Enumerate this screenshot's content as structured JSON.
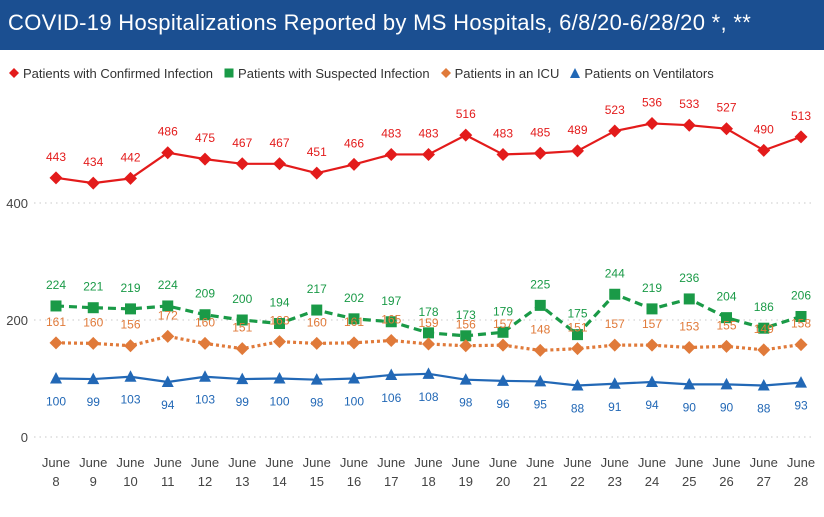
{
  "title": "COVID-19 Hospitalizations Reported by MS Hospitals, 6/8/20-6/28/20 *, **",
  "colors": {
    "title_bg": "#1b4f91",
    "confirmed": "#e31b1b",
    "suspected": "#1a9a47",
    "icu": "#e07a3a",
    "ventilators": "#2268b6",
    "grid": "#c8c8c8",
    "axis_text": "#444444"
  },
  "legend": [
    {
      "label": "Patients with Confirmed Infection",
      "marker": "diamond",
      "color": "#e31b1b"
    },
    {
      "label": "Patients with Suspected Infection",
      "marker": "square",
      "color": "#1a9a47"
    },
    {
      "label": "Patients in an ICU",
      "marker": "diamond",
      "color": "#e07a3a"
    },
    {
      "label": "Patients on Ventilators",
      "marker": "triangle",
      "color": "#2268b6"
    }
  ],
  "chart_data": {
    "type": "line",
    "title": "COVID-19 Hospitalizations Reported by MS Hospitals, 6/8/20-6/28/20 *, **",
    "categories": [
      {
        "month": "June",
        "day": "8"
      },
      {
        "month": "June",
        "day": "9"
      },
      {
        "month": "June",
        "day": "10"
      },
      {
        "month": "June",
        "day": "11"
      },
      {
        "month": "June",
        "day": "12"
      },
      {
        "month": "June",
        "day": "13"
      },
      {
        "month": "June",
        "day": "14"
      },
      {
        "month": "June",
        "day": "15"
      },
      {
        "month": "June",
        "day": "16"
      },
      {
        "month": "June",
        "day": "17"
      },
      {
        "month": "June",
        "day": "18"
      },
      {
        "month": "June",
        "day": "19"
      },
      {
        "month": "June",
        "day": "20"
      },
      {
        "month": "June",
        "day": "21"
      },
      {
        "month": "June",
        "day": "22"
      },
      {
        "month": "June",
        "day": "23"
      },
      {
        "month": "June",
        "day": "24"
      },
      {
        "month": "June",
        "day": "25"
      },
      {
        "month": "June",
        "day": "26"
      },
      {
        "month": "June",
        "day": "27"
      },
      {
        "month": "June",
        "day": "28"
      }
    ],
    "yticks": [
      0,
      200,
      400
    ],
    "ylim": [
      0,
      560
    ],
    "grid": "horizontal dotted",
    "legend_position": "top-left",
    "series": [
      {
        "name": "Patients with Confirmed Infection",
        "marker": "diamond",
        "line": "solid",
        "color": "#e31b1b",
        "values": [
          443,
          434,
          442,
          486,
          475,
          467,
          467,
          451,
          466,
          483,
          483,
          516,
          483,
          485,
          489,
          523,
          536,
          533,
          527,
          490,
          513
        ]
      },
      {
        "name": "Patients with Suspected Infection",
        "marker": "square",
        "line": "dashed",
        "color": "#1a9a47",
        "values": [
          224,
          221,
          219,
          224,
          209,
          200,
          194,
          217,
          202,
          197,
          178,
          173,
          179,
          225,
          175,
          244,
          219,
          236,
          204,
          186,
          206
        ]
      },
      {
        "name": "Patients in an ICU",
        "marker": "diamond",
        "line": "dotted",
        "color": "#e07a3a",
        "values": [
          161,
          160,
          156,
          172,
          160,
          151,
          163,
          160,
          161,
          165,
          159,
          156,
          157,
          148,
          151,
          157,
          157,
          153,
          155,
          149,
          158
        ]
      },
      {
        "name": "Patients on Ventilators",
        "marker": "triangle",
        "line": "solid",
        "color": "#2268b6",
        "values": [
          100,
          99,
          103,
          94,
          103,
          99,
          100,
          98,
          100,
          106,
          108,
          98,
          96,
          95,
          88,
          91,
          94,
          90,
          90,
          88,
          93
        ]
      }
    ]
  }
}
